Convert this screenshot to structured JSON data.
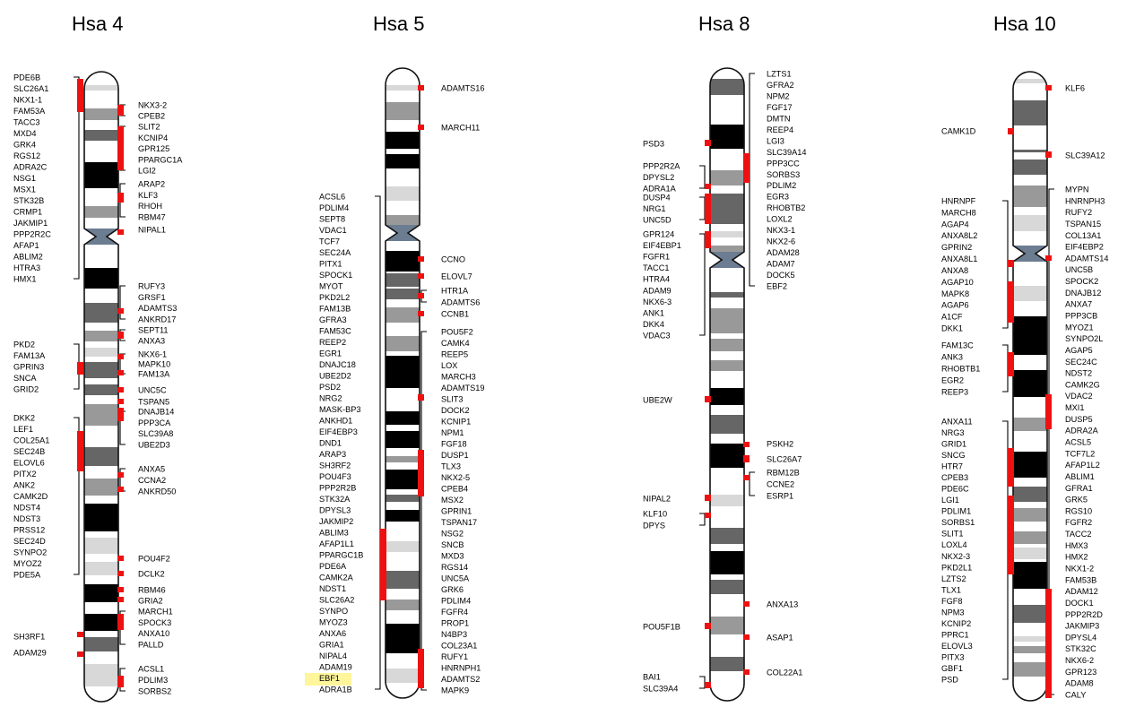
{
  "titles": [
    "Hsa 4",
    "Hsa 5",
    "Hsa 8",
    "Hsa 10"
  ],
  "colors": {
    "marker": "#ee1111",
    "outline": "#111111",
    "highlight": "#fff59a",
    "band_black": "#000000",
    "band_dark": "#666666",
    "band_mid": "#999999",
    "band_light": "#d8d8d8",
    "centromere": "#6c7d91"
  },
  "chromosomes": [
    {
      "id": "hsa4",
      "title": "Hsa 4",
      "left_labels": [
        {
          "items": [
            "PDE6B",
            "SLC26A1",
            "NKX1-1",
            "FAM53A",
            "TACC3",
            "MXD4",
            "GRK4",
            "RGS12",
            "ADRA2C",
            "NSG1",
            "MSX1",
            "STK32B",
            "CRMP1",
            "JAKMIP1",
            "PPP2R2C",
            "AFAP1",
            "ABLIM2",
            "HTRA3",
            "HMX1"
          ]
        },
        {
          "items": [
            "PKD2",
            "FAM13A",
            "GPRIN3",
            "SNCA",
            "GRID2"
          ]
        },
        {
          "items": [
            "DKK2",
            "LEF1",
            "COL25A1",
            "SEC24B",
            "ELOVL6",
            "PITX2",
            "ANK2",
            "CAMK2D",
            "NDST4",
            "NDST3",
            "PRSS12",
            "SEC24D",
            "SYNPO2",
            "MYOZ2",
            "PDE5A"
          ]
        },
        {
          "items": [
            "SH3RF1"
          ]
        },
        {
          "items": [
            "ADAM29"
          ]
        }
      ],
      "right_labels": [
        {
          "items": [
            "NKX3-2",
            "CPEB2"
          ]
        },
        {
          "items": [
            "SLIT2",
            "KCNIP4",
            "GPR125",
            "PPARGC1A",
            "LGI2"
          ]
        },
        {
          "items": [
            "ARAP2",
            "KLF3",
            "RHOH",
            "RBM47"
          ]
        },
        {
          "items": [
            "NIPAL1"
          ]
        },
        {
          "items": [
            "RUFY3",
            "GRSF1",
            "ADAMTS3",
            "ANKRD17"
          ]
        },
        {
          "items": [
            "SEPT11",
            "ANXA3"
          ]
        },
        {
          "items": [
            "NKX6-1",
            "MAPK10",
            "FAM13A"
          ]
        },
        {
          "items": [
            "UNC5C"
          ]
        },
        {
          "items": [
            "TSPAN5"
          ]
        },
        {
          "items": [
            "DNAJB14",
            "PPP3CA",
            "SLC39A8",
            "UBE2D3"
          ]
        },
        {
          "items": [
            "ANXA5",
            "CCNA2",
            "ANKRD50"
          ]
        },
        {
          "items": [
            "POU4F2"
          ]
        },
        {
          "items": [
            "DCLK2"
          ]
        },
        {
          "items": [
            "RBM46"
          ]
        },
        {
          "items": [
            "GRIA2"
          ]
        },
        {
          "items": [
            "MARCH1",
            "SPOCK3",
            "ANXA10",
            "PALLD"
          ]
        },
        {
          "items": [
            "ACSL1",
            "PDLIM3",
            "SORBS2"
          ]
        }
      ]
    },
    {
      "id": "hsa5",
      "title": "Hsa 5",
      "left_labels": [
        {
          "items": [
            "ACSL6",
            "PDLIM4",
            "SEPT8",
            "VDAC1",
            "TCF7",
            "SEC24A",
            "PITX1",
            "SPOCK1",
            "MYOT",
            "PKD2L2",
            "FAM13B",
            "GFRA3",
            "FAM53C",
            "REEP2",
            "EGR1",
            "DNAJC18",
            "UBE2D2",
            "PSD2",
            "NRG2",
            "MASK-BP3",
            "ANKHD1",
            "EIF4EBP3",
            "DND1",
            "ARAP3",
            "SH3RF2",
            "POU4F3",
            "PPP2R2B",
            "STK32A",
            "DPYSL3",
            "JAKMIP2",
            "ABLIM3",
            "AFAP1L1",
            "PPARGC1B",
            "PDE6A",
            "CAMK2A",
            "NDST1",
            "SLC26A2",
            "SYNPO",
            "MYOZ3",
            "ANXA6",
            "GRIA1",
            "NIPAL4",
            "ADAM19",
            "EBF1",
            "ADRA1B"
          ]
        }
      ],
      "highlighted_label": "EBF1",
      "right_labels": [
        {
          "items": [
            "ADAMTS16"
          ]
        },
        {
          "items": [
            "MARCH11"
          ]
        },
        {
          "items": [
            "CCNO"
          ]
        },
        {
          "items": [
            "ELOVL7"
          ]
        },
        {
          "items": [
            "HTR1A",
            "ADAMTS6"
          ]
        },
        {
          "items": [
            "CCNB1"
          ]
        },
        {
          "items": [
            "POU5F2",
            "CAMK4",
            "REEP5",
            "LOX",
            "MARCH3",
            "ADAMTS19",
            "SLIT3",
            "DOCK2",
            "KCNIP1",
            "NPM1",
            "FGF18",
            "DUSP1",
            "TLX3",
            "NKX2-5",
            "CPEB4",
            "MSX2",
            "GPRIN1",
            "TSPAN17",
            "NSG2",
            "SNCB",
            "MXD3",
            "RGS14",
            "UNC5A",
            "GRK6",
            "PDLIM4",
            "FGFR4",
            "PROP1",
            "N4BP3",
            "COL23A1",
            "RUFY1",
            "HNRNPH1",
            "ADAMTS2",
            "MAPK9"
          ]
        }
      ]
    },
    {
      "id": "hsa8",
      "title": "Hsa 8",
      "left_labels": [
        {
          "items": [
            "PSD3"
          ]
        },
        {
          "items": [
            "PPP2R2A",
            "DPYSL2",
            "ADRA1A"
          ]
        },
        {
          "items": [
            "DUSP4",
            "NRG1",
            "UNC5D"
          ]
        },
        {
          "items": [
            "GPR124",
            "EIF4EBP1",
            "FGFR1",
            "TACC1",
            "HTRA4",
            "ADAM9",
            "NKX6-3",
            "ANK1",
            "DKK4",
            "VDAC3"
          ]
        },
        {
          "items": [
            "UBE2W"
          ]
        },
        {
          "items": [
            "NIPAL2"
          ]
        },
        {
          "items": [
            "KLF10",
            "DPYS"
          ]
        },
        {
          "items": [
            "POU5F1B"
          ]
        },
        {
          "items": [
            "BAI1",
            "SLC39A4"
          ]
        }
      ],
      "right_labels": [
        {
          "items": [
            "LZTS1",
            "GFRA2",
            "NPM2",
            "FGF17",
            "DMTN",
            "REEP4",
            "LGI3",
            "SLC39A14",
            "PPP3CC",
            "SORBS3",
            "PDLIM2",
            "EGR3",
            "RHOBTB2",
            "LOXL2",
            "NKX3-1",
            "NKX2-6",
            "ADAM28",
            "ADAM7",
            "DOCK5",
            "EBF2"
          ]
        },
        {
          "items": [
            "PSKH2"
          ]
        },
        {
          "items": [
            "SLC26A7"
          ]
        },
        {
          "items": [
            "RBM12B",
            "CCNE2",
            "ESRP1"
          ]
        },
        {
          "items": [
            "ANXA13"
          ]
        },
        {
          "items": [
            "ASAP1"
          ]
        },
        {
          "items": [
            "COL22A1"
          ]
        }
      ]
    },
    {
      "id": "hsa10",
      "title": "Hsa 10",
      "left_labels": [
        {
          "items": [
            "CAMK1D"
          ]
        },
        {
          "items": [
            "HNRNPF",
            "MARCH8",
            "AGAP4",
            "ANXA8L2",
            "GPRIN2",
            "ANXA8L1",
            "ANXA8",
            "AGAP10",
            "MAPK8",
            "AGAP6",
            "A1CF",
            "DKK1"
          ]
        },
        {
          "items": [
            "FAM13C",
            "ANK3",
            "RHOBTB1",
            "EGR2",
            "REEP3"
          ]
        },
        {
          "items": [
            "ANXA11",
            "NRG3",
            "GRID1",
            "SNCG",
            "HTR7",
            "CPEB3",
            "PDE6C",
            "LGI1",
            "PDLIM1",
            "SORBS1",
            "SLIT1",
            "LOXL4",
            "NKX2-3",
            "PKD2L1",
            "LZTS2",
            "TLX1",
            "FGF8",
            "NPM3",
            "KCNIP2",
            "PPRC1",
            "ELOVL3",
            "PITX3",
            "GBF1",
            "PSD"
          ]
        }
      ],
      "right_labels": [
        {
          "items": [
            "KLF6"
          ]
        },
        {
          "items": [
            "SLC39A12"
          ]
        },
        {
          "items": [
            "MYPN",
            "HNRNPH3",
            "RUFY2",
            "TSPAN15",
            "COL13A1",
            "EIF4EBP2",
            "ADAMTS14",
            "UNC5B",
            "SPOCK2",
            "DNAJB12",
            "ANXA7",
            "PPP3CB",
            "MYOZ1",
            "SYNPO2L",
            "AGAP5",
            "SEC24C",
            "NDST2",
            "CAMK2G",
            "VDAC2",
            "MXI1",
            "DUSP5",
            "ADRA2A",
            "ACSL5",
            "TCF7L2",
            "AFAP1L2",
            "ABLIM1",
            "GFRA1",
            "GRK5",
            "RGS10",
            "FGFR2",
            "TACC2",
            "HMX3",
            "HMX2",
            "NKX1-2",
            "FAM53B",
            "ADAM12",
            "DOCK1",
            "PPP2R2D",
            "JAKMIP3",
            "DPYSL4",
            "STK32C",
            "NKX6-2",
            "GPR123",
            "ADAM8",
            "CALY"
          ]
        }
      ]
    }
  ]
}
